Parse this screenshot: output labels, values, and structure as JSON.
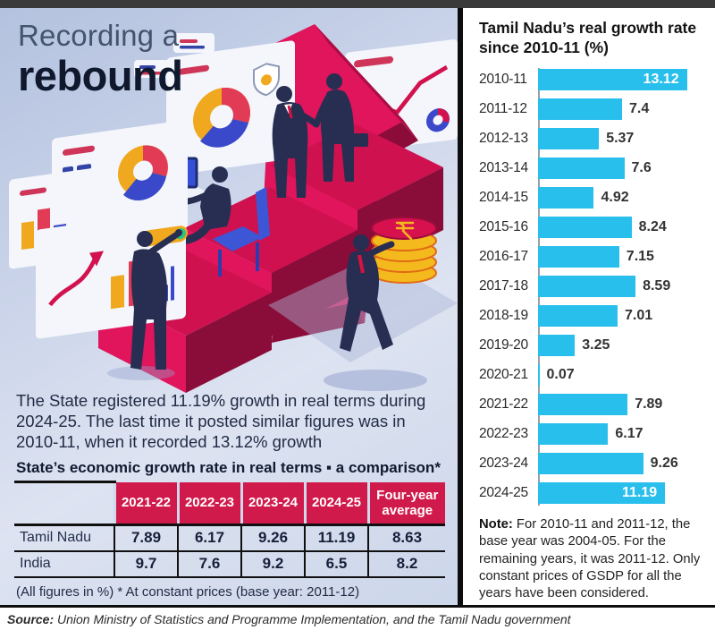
{
  "title": {
    "line1": "Recording a",
    "line2": "rebound"
  },
  "intro": {
    "text": "The State registered 11.19% growth in real terms during 2024-25. The last time it posted similar figures was in 2010-11, when it recorded 13.12% growth"
  },
  "chart_data": [
    {
      "type": "bar",
      "orientation": "horizontal",
      "title": "Tamil Nadu’s real growth rate since 2010-11 (%)",
      "categories": [
        "2010-11",
        "2011-12",
        "2012-13",
        "2013-14",
        "2014-15",
        "2015-16",
        "2016-17",
        "2017-18",
        "2018-19",
        "2019-20",
        "2020-21",
        "2021-22",
        "2022-23",
        "2023-24",
        "2024-25"
      ],
      "values": [
        13.12,
        7.4,
        5.37,
        7.6,
        4.92,
        8.24,
        7.15,
        8.59,
        7.01,
        3.25,
        0.07,
        7.89,
        6.17,
        9.26,
        11.19
      ],
      "xlim": [
        0,
        13.8
      ],
      "bar_color": "#29bfec",
      "value_inside_threshold": 10,
      "grid": false,
      "legend": false
    },
    {
      "type": "table",
      "title": "State’s economic growth rate in real terms ▪ a comparison*",
      "columns": [
        "2021-22",
        "2022-23",
        "2023-24",
        "2024-25",
        "Four-year average"
      ],
      "rows": [
        {
          "label": "Tamil Nadu",
          "values": [
            "7.89",
            "6.17",
            "9.26",
            "11.19",
            "8.63"
          ]
        },
        {
          "label": "India",
          "values": [
            "9.7",
            "7.6",
            "9.2",
            "6.5",
            "8.2"
          ]
        }
      ],
      "footnote": "(All figures in %) * At constant prices (base year: 2011-12)"
    }
  ],
  "note": {
    "label": "Note:",
    "text": " For 2010-11 and 2011-12, the base year was 2004-05. For the remaining years, it was 2011-12. Only constant prices of GSDP for all the years have been considered."
  },
  "source": {
    "label": "Source:",
    "text": " Union Ministry of Statistics and Programme Implementation, and the Tamil Nadu government"
  },
  "colors": {
    "bar_cyan": "#29bfec",
    "crimson": "#d01a4b",
    "navy_text": "#1f2a44",
    "panel_bg_top": "#b4c2df",
    "panel_bg_bottom": "#dde3f1",
    "divider_black": "#0d0d0d"
  }
}
